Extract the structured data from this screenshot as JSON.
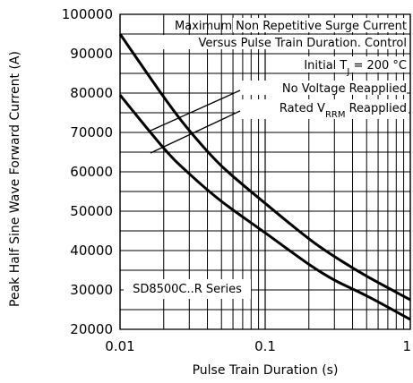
{
  "chart_data": {
    "type": "line",
    "xscale": "log",
    "xlim": [
      0.01,
      1
    ],
    "ylim": [
      20000,
      100000
    ],
    "grid": true,
    "xlabel": "Pulse Train Duration (s)",
    "ylabel": "Peak Half Sine Wave Forward Current (A)",
    "x_tick_labels": [
      "0.01",
      "0.1",
      "1"
    ],
    "y_tick_labels": [
      "20000",
      "30000",
      "40000",
      "50000",
      "60000",
      "70000",
      "80000",
      "90000",
      "100000"
    ],
    "annotations": {
      "line1": "Maximum Non Repetitive Surge Current",
      "line2": "Versus Pulse Train Duration. Control",
      "line3_prefix": "Initial T",
      "line3_sub": "J",
      "line3_suffix": " = 200 °C",
      "no_voltage": "No Voltage Reapplied",
      "rated_prefix": "Rated V",
      "rated_sub": "RRM",
      "rated_suffix": " Reapplied",
      "series_label": "SD8500C..R Series"
    },
    "series": [
      {
        "name": "No Voltage Reapplied",
        "x": [
          0.01,
          0.02,
          0.03,
          0.05,
          0.1,
          0.2,
          0.3,
          0.5,
          1.0
        ],
        "y": [
          95000,
          79000,
          70500,
          61500,
          52000,
          43000,
          38500,
          33500,
          27500
        ]
      },
      {
        "name": "Rated VRRM Reapplied",
        "x": [
          0.01,
          0.02,
          0.03,
          0.05,
          0.1,
          0.2,
          0.3,
          0.5,
          1.0
        ],
        "y": [
          79500,
          66000,
          59500,
          52500,
          44500,
          36500,
          32500,
          28500,
          22500
        ]
      }
    ]
  }
}
